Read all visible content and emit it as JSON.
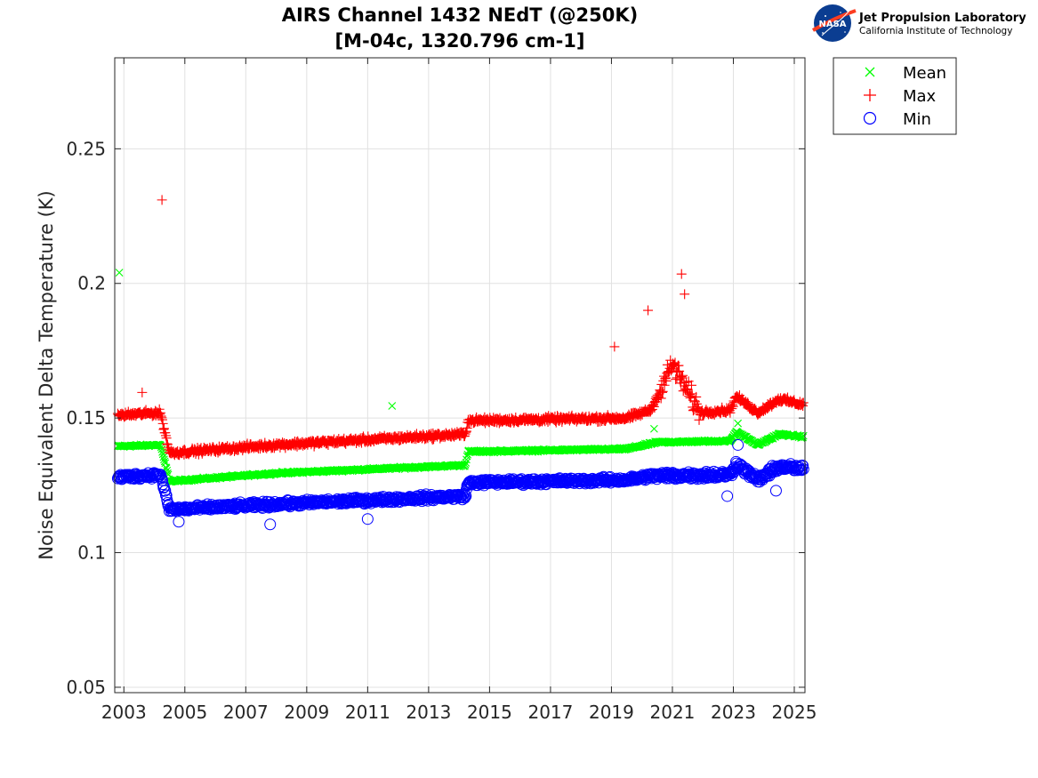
{
  "chart_data": {
    "type": "scatter",
    "title": "AIRS Channel 1432 NEdT (@250K)",
    "subtitle": "[M-04c, 1320.796 cm-1]",
    "xlabel": "",
    "ylabel": "Noise Equivalent Delta Temperature (K)",
    "xlim": [
      2002.7,
      2025.35
    ],
    "ylim": [
      0.048,
      0.2838
    ],
    "xticks": [
      2003,
      2005,
      2007,
      2009,
      2011,
      2013,
      2015,
      2017,
      2019,
      2021,
      2023,
      2025
    ],
    "xtick_labels": [
      "2003",
      "2005",
      "2007",
      "2009",
      "2011",
      "2013",
      "2015",
      "2017",
      "2019",
      "2021",
      "2023",
      "2025"
    ],
    "yticks": [
      0.05,
      0.1,
      0.15,
      0.2,
      0.25
    ],
    "ytick_labels": [
      "0.05",
      "0.1",
      "0.15",
      "0.2",
      "0.25"
    ],
    "grid": true,
    "legend_position": "outside-top-right",
    "sampling": "approximately weekly, 2002.8 to 2025.3",
    "series": [
      {
        "name": "Mean",
        "marker": "x",
        "color": "#00ff00",
        "baseline_by_year": [
          [
            2002.8,
            0.1395
          ],
          [
            2004.2,
            0.14
          ],
          [
            2004.5,
            0.1265
          ],
          [
            2008.0,
            0.1295
          ],
          [
            2014.2,
            0.1325
          ],
          [
            2014.3,
            0.1375
          ],
          [
            2019.5,
            0.1385
          ],
          [
            2020.5,
            0.141
          ],
          [
            2022.9,
            0.1415
          ],
          [
            2023.1,
            0.145
          ],
          [
            2023.8,
            0.14
          ],
          [
            2024.5,
            0.144
          ],
          [
            2025.3,
            0.143
          ]
        ],
        "notable_points": [
          [
            2002.85,
            0.204
          ],
          [
            2011.8,
            0.1545
          ],
          [
            2020.4,
            0.146
          ],
          [
            2023.15,
            0.148
          ]
        ]
      },
      {
        "name": "Max",
        "marker": "+",
        "color": "#ff0000",
        "baseline_by_year": [
          [
            2002.8,
            0.151
          ],
          [
            2004.2,
            0.152
          ],
          [
            2004.5,
            0.137
          ],
          [
            2008.0,
            0.14
          ],
          [
            2014.2,
            0.144
          ],
          [
            2014.3,
            0.149
          ],
          [
            2019.5,
            0.15
          ],
          [
            2020.3,
            0.153
          ],
          [
            2021.0,
            0.17
          ],
          [
            2021.9,
            0.152
          ],
          [
            2022.9,
            0.153
          ],
          [
            2023.1,
            0.158
          ],
          [
            2023.8,
            0.152
          ],
          [
            2024.5,
            0.157
          ],
          [
            2025.3,
            0.155
          ]
        ],
        "notable_points": [
          [
            2003.6,
            0.1595
          ],
          [
            2004.25,
            0.231
          ],
          [
            2019.1,
            0.1765
          ],
          [
            2020.2,
            0.19
          ],
          [
            2021.3,
            0.2035
          ],
          [
            2021.4,
            0.196
          ]
        ]
      },
      {
        "name": "Min",
        "marker": "o",
        "color": "#0000ff",
        "baseline_by_year": [
          [
            2002.8,
            0.128
          ],
          [
            2004.2,
            0.129
          ],
          [
            2004.5,
            0.116
          ],
          [
            2008.0,
            0.118
          ],
          [
            2014.2,
            0.121
          ],
          [
            2014.3,
            0.126
          ],
          [
            2019.5,
            0.127
          ],
          [
            2020.3,
            0.1285
          ],
          [
            2022.9,
            0.129
          ],
          [
            2023.1,
            0.133
          ],
          [
            2023.8,
            0.127
          ],
          [
            2024.5,
            0.132
          ],
          [
            2025.3,
            0.131
          ]
        ],
        "notable_points": [
          [
            2004.8,
            0.1115
          ],
          [
            2007.8,
            0.1105
          ],
          [
            2011.0,
            0.1125
          ],
          [
            2022.8,
            0.121
          ],
          [
            2023.15,
            0.14
          ],
          [
            2024.4,
            0.123
          ]
        ]
      }
    ]
  },
  "logo": {
    "name": "Jet Propulsion Laboratory",
    "subtitle": "California Institute of Technology",
    "badge_text": "NASA"
  }
}
